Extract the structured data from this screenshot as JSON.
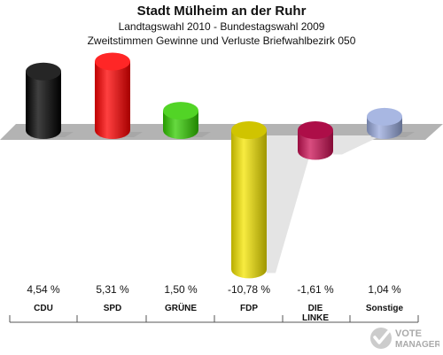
{
  "chart_data": {
    "type": "bar",
    "title": "Stadt Mülheim an der Ruhr",
    "subtitle": "Landtagswahl 2010 - Bundestagswahl 2009",
    "subtitle2": "Zweitstimmen Gewinne und Verluste Briefwahlbezirk 050",
    "categories": [
      "CDU",
      "SPD",
      "GRÜNE",
      "FDP",
      "DIE LINKE",
      "Sonstige"
    ],
    "values": [
      4.54,
      5.31,
      1.5,
      -10.78,
      -1.61,
      1.04
    ],
    "value_labels": [
      "4,54 %",
      "5,31 %",
      "1,50 %",
      "-10,78 %",
      "-1,61 %",
      "1,04 %"
    ],
    "colors": [
      "#000000",
      "#ff0000",
      "#33cc00",
      "#f5e600",
      "#cc1155",
      "#99aadd"
    ],
    "ylim": [
      -11,
      6
    ],
    "grid": false
  },
  "brand": {
    "text": "VOTE",
    "text2": "MANAGER",
    "color": "#bbbbbb"
  }
}
